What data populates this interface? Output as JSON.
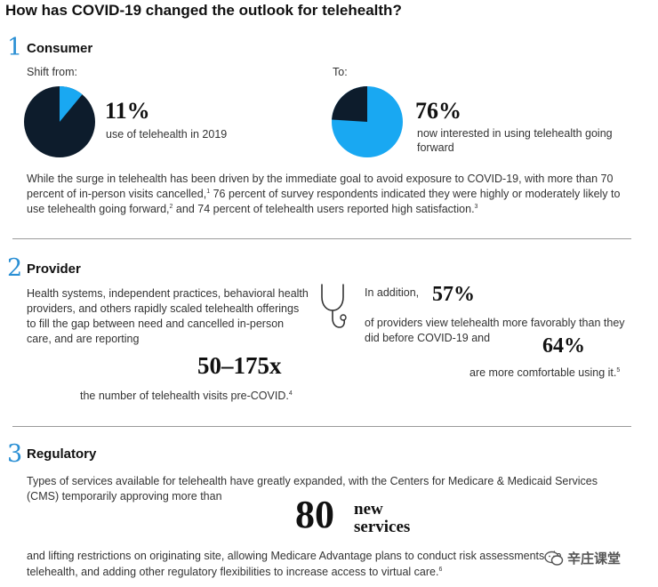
{
  "title": "How has COVID-19 changed the outlook for telehealth?",
  "colors": {
    "accent": "#2a8fd4",
    "pie_light": "#19a8f2",
    "pie_dark": "#0d1c2c"
  },
  "consumer": {
    "number": "1",
    "title": "Consumer",
    "shift_from_label": "Shift from:",
    "to_label": "To:",
    "from_stat": {
      "value": "11%",
      "caption": "use of telehealth in 2019",
      "fraction": 0.11
    },
    "to_stat": {
      "value": "76%",
      "caption": "now interested in using telehealth going forward",
      "fraction": 0.76
    },
    "paragraph": {
      "part1": "While the surge in telehealth has been driven by the immediate goal to avoid exposure to COVID-19, with more than 70 percent of in-person visits cancelled,",
      "sup1": "1",
      "part2": " 76 percent of survey respondents indicated they were highly or moderately likely to use telehealth going forward,",
      "sup2": "2",
      "part3": " and 74 percent of telehealth users reported high satisfaction.",
      "sup3": "3"
    }
  },
  "provider": {
    "number": "2",
    "title": "Provider",
    "left_paragraph": "Health systems, independent practices, behavioral health providers, and others rapidly scaled telehealth offerings to fill the gap between need and cancelled in-person care, and are reporting",
    "big_stat": "50–175x",
    "big_caption": "the number of telehealth visits pre-COVID.",
    "big_caption_sup": "4",
    "icon": "stethoscope-icon",
    "in_addition": "In addition,",
    "stat1": "57%",
    "stat1_caption": "of providers view telehealth more favorably than they did before COVID-19 and",
    "stat2": "64%",
    "stat2_caption": "are more comfortable using it.",
    "stat2_sup": "5"
  },
  "regulatory": {
    "number": "3",
    "title": "Regulatory",
    "para1": "Types of services available for telehealth have greatly expanded, with the Centers for Medicare & Medicaid Services (CMS) temporarily approving more than",
    "big_number": "80",
    "big_label_line1": "new",
    "big_label_line2": "services",
    "para2_line1": "and lifting restrictions on originating site, allowing Medicare Advantage plans to conduct risk assessments via",
    "para2_line2": "telehealth, and adding other regulatory flexibilities to increase access to virtual care.",
    "para2_sup": "6"
  },
  "watermark": {
    "icon": "wechat-icon",
    "text": "辛庄课堂"
  }
}
